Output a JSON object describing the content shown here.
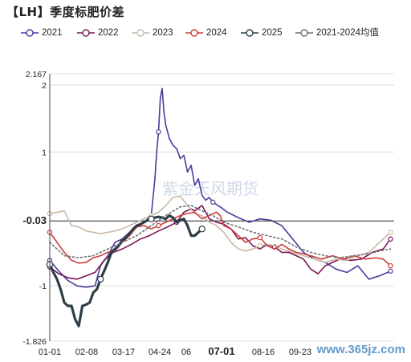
{
  "title": "【LH】季度标肥价差",
  "chart_data": {
    "type": "line",
    "title": "【LH】季度标肥价差",
    "xlabel": "",
    "ylabel": "",
    "ylim": [
      -1.826,
      2.167
    ],
    "y_labels": [
      "2.167",
      "2",
      "1",
      "-0.03",
      "-1",
      "-1.826"
    ],
    "y_label_values": [
      2.167,
      2,
      1,
      -0.03,
      -1,
      -1.826
    ],
    "y_highlight": "-0.03",
    "x_labels": [
      "01-01",
      "02-08",
      "03-17",
      "04-24",
      "06",
      "07-01",
      "08-16",
      "09-23"
    ],
    "x_highlight": "07-01",
    "grid": true,
    "legend_position": "top",
    "watermark": "紫金天风期货",
    "source_watermark": "www.365jz.com",
    "series": [
      {
        "name": "2021",
        "color": "#4b3d9c",
        "width": 1.6,
        "dash": "",
        "marker": true,
        "points": [
          [
            0,
            -0.62
          ],
          [
            5,
            -0.78
          ],
          [
            10,
            -0.92
          ],
          [
            15,
            -1.0
          ],
          [
            20,
            -1.02
          ],
          [
            25,
            -1.0
          ],
          [
            28,
            -0.7
          ],
          [
            32,
            -0.55
          ],
          [
            36,
            -0.35
          ],
          [
            40,
            -0.3
          ],
          [
            44,
            -0.2
          ],
          [
            48,
            -0.1
          ],
          [
            52,
            -0.05
          ],
          [
            56,
            0.05
          ],
          [
            58,
            0.6
          ],
          [
            59,
            1.0
          ],
          [
            60,
            1.3
          ],
          [
            61,
            1.8
          ],
          [
            62,
            1.95
          ],
          [
            63,
            1.6
          ],
          [
            64,
            1.4
          ],
          [
            66,
            1.2
          ],
          [
            68,
            1.1
          ],
          [
            70,
            1.05
          ],
          [
            72,
            0.9
          ],
          [
            74,
            0.95
          ],
          [
            76,
            0.7
          ],
          [
            78,
            0.8
          ],
          [
            80,
            0.5
          ],
          [
            82,
            0.6
          ],
          [
            84,
            0.35
          ],
          [
            86,
            0.28
          ],
          [
            88,
            0.32
          ],
          [
            90,
            0.25
          ],
          [
            94,
            0.18
          ],
          [
            98,
            0.1
          ],
          [
            104,
            0.02
          ],
          [
            110,
            -0.05
          ],
          [
            116,
            0.0
          ],
          [
            122,
            -0.02
          ],
          [
            128,
            -0.1
          ],
          [
            134,
            -0.3
          ],
          [
            140,
            -0.5
          ],
          [
            146,
            -0.6
          ],
          [
            152,
            -0.65
          ],
          [
            158,
            -0.75
          ],
          [
            164,
            -0.8
          ],
          [
            170,
            -0.7
          ],
          [
            176,
            -0.9
          ],
          [
            182,
            -0.85
          ],
          [
            188,
            -0.78
          ]
        ]
      },
      {
        "name": "2022",
        "color": "#7a1656",
        "width": 1.6,
        "dash": "",
        "marker": true,
        "points": [
          [
            0,
            -0.72
          ],
          [
            5,
            -0.82
          ],
          [
            10,
            -0.88
          ],
          [
            15,
            -0.9
          ],
          [
            20,
            -0.85
          ],
          [
            25,
            -0.8
          ],
          [
            30,
            -0.62
          ],
          [
            35,
            -0.5
          ],
          [
            40,
            -0.45
          ],
          [
            45,
            -0.38
          ],
          [
            50,
            -0.3
          ],
          [
            55,
            -0.25
          ],
          [
            60,
            -0.18
          ],
          [
            65,
            -0.12
          ],
          [
            70,
            -0.05
          ],
          [
            74,
            0.1
          ],
          [
            78,
            0.15
          ],
          [
            80,
            0.12
          ],
          [
            84,
            0.2
          ],
          [
            88,
            0.0
          ],
          [
            92,
            -0.05
          ],
          [
            96,
            -0.08
          ],
          [
            100,
            -0.15
          ],
          [
            104,
            -0.3
          ],
          [
            108,
            -0.28
          ],
          [
            112,
            -0.4
          ],
          [
            116,
            -0.45
          ],
          [
            120,
            -0.38
          ],
          [
            124,
            -0.42
          ],
          [
            128,
            -0.5
          ],
          [
            132,
            -0.5
          ],
          [
            136,
            -0.55
          ],
          [
            140,
            -0.6
          ],
          [
            144,
            -0.75
          ],
          [
            148,
            -0.82
          ],
          [
            152,
            -0.7
          ],
          [
            156,
            -0.65
          ],
          [
            160,
            -0.6
          ],
          [
            166,
            -0.62
          ],
          [
            172,
            -0.6
          ],
          [
            178,
            -0.5
          ],
          [
            184,
            -0.45
          ],
          [
            188,
            -0.3
          ]
        ]
      },
      {
        "name": "2023",
        "color": "#c9b9a7",
        "width": 1.6,
        "dash": "",
        "marker": true,
        "points": [
          [
            0,
            0.08
          ],
          [
            4,
            0.1
          ],
          [
            8,
            0.12
          ],
          [
            12,
            -0.1
          ],
          [
            16,
            -0.12
          ],
          [
            20,
            -0.18
          ],
          [
            24,
            -0.2
          ],
          [
            28,
            -0.22
          ],
          [
            32,
            -0.2
          ],
          [
            36,
            -0.18
          ],
          [
            40,
            -0.15
          ],
          [
            44,
            -0.1
          ],
          [
            48,
            -0.05
          ],
          [
            52,
            0.0
          ],
          [
            56,
            0.05
          ],
          [
            60,
            0.1
          ],
          [
            64,
            0.2
          ],
          [
            68,
            0.32
          ],
          [
            72,
            0.34
          ],
          [
            76,
            0.2
          ],
          [
            80,
            0.08
          ],
          [
            84,
            0.05
          ],
          [
            88,
            -0.05
          ],
          [
            92,
            -0.1
          ],
          [
            96,
            -0.2
          ],
          [
            100,
            -0.35
          ],
          [
            104,
            -0.45
          ],
          [
            108,
            -0.48
          ],
          [
            112,
            -0.45
          ],
          [
            116,
            -0.4
          ],
          [
            120,
            -0.38
          ],
          [
            124,
            -0.4
          ],
          [
            128,
            -0.45
          ],
          [
            132,
            -0.48
          ],
          [
            136,
            -0.52
          ],
          [
            140,
            -0.55
          ],
          [
            146,
            -0.6
          ],
          [
            152,
            -0.65
          ],
          [
            158,
            -0.6
          ],
          [
            164,
            -0.62
          ],
          [
            170,
            -0.55
          ],
          [
            176,
            -0.5
          ],
          [
            182,
            -0.35
          ],
          [
            188,
            -0.2
          ]
        ]
      },
      {
        "name": "2024",
        "color": "#cf3c3c",
        "width": 1.6,
        "dash": "",
        "marker": true,
        "points": [
          [
            0,
            -0.2
          ],
          [
            4,
            -0.35
          ],
          [
            8,
            -0.5
          ],
          [
            12,
            -0.62
          ],
          [
            16,
            -0.66
          ],
          [
            20,
            -0.65
          ],
          [
            24,
            -0.58
          ],
          [
            28,
            -0.55
          ],
          [
            32,
            -0.5
          ],
          [
            36,
            -0.48
          ],
          [
            40,
            -0.35
          ],
          [
            44,
            -0.25
          ],
          [
            48,
            -0.12
          ],
          [
            52,
            -0.1
          ],
          [
            56,
            -0.15
          ],
          [
            60,
            -0.1
          ],
          [
            64,
            -0.05
          ],
          [
            68,
            0.0
          ],
          [
            72,
            0.05
          ],
          [
            76,
            0.08
          ],
          [
            80,
            0.1
          ],
          [
            84,
            0.0
          ],
          [
            88,
            0.05
          ],
          [
            92,
            0.1
          ],
          [
            94,
            0.05
          ],
          [
            96,
            -0.1
          ],
          [
            100,
            -0.15
          ],
          [
            104,
            -0.25
          ],
          [
            108,
            -0.35
          ],
          [
            112,
            -0.3
          ],
          [
            116,
            -0.28
          ],
          [
            120,
            -0.4
          ],
          [
            124,
            -0.45
          ],
          [
            128,
            -0.38
          ],
          [
            132,
            -0.45
          ],
          [
            136,
            -0.5
          ],
          [
            140,
            -0.52
          ],
          [
            144,
            -0.55
          ],
          [
            150,
            -0.6
          ],
          [
            156,
            -0.55
          ],
          [
            162,
            -0.6
          ],
          [
            168,
            -0.55
          ],
          [
            174,
            -0.6
          ],
          [
            180,
            -0.58
          ],
          [
            184,
            -0.6
          ],
          [
            188,
            -0.7
          ]
        ]
      },
      {
        "name": "2025",
        "color": "#2d3e47",
        "width": 3.2,
        "dash": "",
        "marker": true,
        "points": [
          [
            0,
            -0.68
          ],
          [
            2,
            -0.8
          ],
          [
            4,
            -0.9
          ],
          [
            6,
            -1.05
          ],
          [
            8,
            -1.25
          ],
          [
            10,
            -1.3
          ],
          [
            12,
            -1.3
          ],
          [
            14,
            -1.5
          ],
          [
            16,
            -1.6
          ],
          [
            18,
            -1.3
          ],
          [
            20,
            -1.28
          ],
          [
            22,
            -1.25
          ],
          [
            24,
            -1.1
          ],
          [
            26,
            -1.05
          ],
          [
            28,
            -0.9
          ],
          [
            30,
            -0.78
          ],
          [
            32,
            -0.65
          ],
          [
            34,
            -0.5
          ],
          [
            36,
            -0.45
          ],
          [
            38,
            -0.4
          ],
          [
            40,
            -0.32
          ],
          [
            42,
            -0.28
          ],
          [
            44,
            -0.22
          ],
          [
            46,
            -0.15
          ],
          [
            48,
            -0.1
          ],
          [
            50,
            -0.08
          ],
          [
            52,
            -0.05
          ],
          [
            54,
            -0.02
          ],
          [
            56,
            0.0
          ],
          [
            58,
            0.02
          ],
          [
            60,
            0.03
          ],
          [
            62,
            0.02
          ],
          [
            64,
            0.0
          ],
          [
            66,
            0.05
          ],
          [
            68,
            0.02
          ],
          [
            70,
            -0.05
          ],
          [
            72,
            -0.02
          ],
          [
            74,
            0.0
          ],
          [
            76,
            -0.1
          ],
          [
            78,
            -0.25
          ],
          [
            80,
            -0.25
          ],
          [
            82,
            -0.2
          ],
          [
            84,
            -0.15
          ]
        ]
      },
      {
        "name": "2021-2024均值",
        "color": "#707070",
        "width": 1.6,
        "dash": "2,3",
        "marker": false,
        "points": [
          [
            0,
            -0.35
          ],
          [
            8,
            -0.55
          ],
          [
            16,
            -0.58
          ],
          [
            24,
            -0.55
          ],
          [
            32,
            -0.45
          ],
          [
            40,
            -0.35
          ],
          [
            48,
            -0.25
          ],
          [
            56,
            -0.1
          ],
          [
            64,
            0.05
          ],
          [
            72,
            0.18
          ],
          [
            78,
            0.2
          ],
          [
            84,
            0.12
          ],
          [
            90,
            0.05
          ],
          [
            96,
            -0.05
          ],
          [
            104,
            -0.12
          ],
          [
            112,
            -0.2
          ],
          [
            120,
            -0.25
          ],
          [
            128,
            -0.3
          ],
          [
            136,
            -0.42
          ],
          [
            144,
            -0.5
          ],
          [
            152,
            -0.55
          ],
          [
            160,
            -0.58
          ],
          [
            168,
            -0.55
          ],
          [
            176,
            -0.52
          ],
          [
            182,
            -0.48
          ],
          [
            188,
            -0.45
          ]
        ]
      }
    ]
  }
}
